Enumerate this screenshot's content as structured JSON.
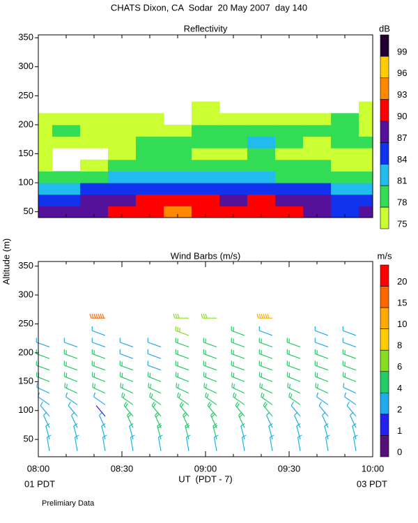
{
  "title": "CHATS Dixon, CA  Sodar  20 May 2007  day 140",
  "y_label": "Altitude (m)",
  "x_label": "UT  (PDT - 7)",
  "x_left_note": "01 PDT",
  "x_right_note": "03 PDT",
  "footnote": "Prelimiary Data",
  "chart_data": [
    {
      "type": "heatmap",
      "title": "Reflectivity",
      "colorbar_unit": "dB",
      "levels": [
        75,
        78,
        81,
        84,
        87,
        90,
        93,
        96,
        99
      ],
      "level_colors": [
        "#ccff33",
        "#33dd55",
        "#22bbee",
        "#1133ee",
        "#551199",
        "#ff0000",
        "#ff8800",
        "#ffcc00",
        "#220033"
      ],
      "xlim": [
        0,
        120
      ],
      "xtick_marks": [
        0,
        10,
        20,
        30,
        40,
        50,
        60,
        70,
        80,
        90,
        100,
        110,
        120
      ],
      "ylim": [
        40,
        355
      ],
      "yticks": [
        50,
        100,
        150,
        200,
        250,
        300,
        350
      ],
      "x": [
        0,
        10,
        20,
        30,
        40,
        50,
        60,
        70,
        80,
        90,
        100,
        110,
        120
      ],
      "heights": [
        50,
        70,
        90,
        110,
        130,
        150,
        170,
        190,
        210,
        230
      ],
      "values": [
        [
          88,
          88,
          88,
          90,
          91,
          93,
          90,
          90,
          91,
          91,
          88,
          86,
          88
        ],
        [
          86,
          86,
          87,
          89,
          90,
          91,
          90,
          89,
          90,
          89,
          87,
          85,
          85
        ],
        [
          81,
          81,
          84,
          85,
          85,
          85,
          84,
          85,
          85,
          84,
          84,
          82,
          82
        ],
        [
          78,
          78,
          79,
          81,
          82,
          82,
          81,
          81,
          82,
          80,
          79,
          78,
          78
        ],
        [
          76,
          null,
          76,
          78,
          79,
          79,
          79,
          78,
          80,
          78,
          78,
          77,
          77
        ],
        [
          76,
          null,
          null,
          76,
          78,
          78,
          77,
          77,
          78,
          76,
          76,
          76,
          76
        ],
        [
          76,
          76,
          76,
          76,
          78,
          78,
          79,
          79,
          81,
          78,
          77,
          78,
          78
        ],
        [
          76,
          78,
          76,
          76,
          76,
          77,
          78,
          79,
          79,
          78,
          79,
          79,
          77
        ],
        [
          76,
          76,
          76,
          76,
          76,
          null,
          76,
          76,
          77,
          76,
          76,
          78,
          77
        ],
        [
          null,
          null,
          null,
          null,
          null,
          null,
          76,
          null,
          null,
          null,
          null,
          null,
          76
        ]
      ]
    },
    {
      "type": "barbs",
      "title": "Wind Barbs (m/s)",
      "colorbar_unit": "m/s",
      "levels": [
        0,
        1,
        2,
        4,
        6,
        8,
        10,
        15,
        20
      ],
      "level_colors": [
        "#551177",
        "#2222ee",
        "#22aaee",
        "#22cc66",
        "#88dd22",
        "#ffcc00",
        "#ffaa00",
        "#ff6600",
        "#ff0000"
      ],
      "xlim": [
        0,
        120
      ],
      "xticks": [
        {
          "value": 0,
          "label": "08:00"
        },
        {
          "value": 30,
          "label": "08:30"
        },
        {
          "value": 60,
          "label": "09:00"
        },
        {
          "value": 90,
          "label": "09:30"
        },
        {
          "value": 120,
          "label": "10:00"
        }
      ],
      "xminor_ticks": [
        10,
        20,
        40,
        50,
        70,
        80,
        100,
        110
      ],
      "ylim": [
        20,
        358
      ],
      "yticks": [
        50,
        100,
        150,
        200,
        250,
        300,
        350
      ],
      "x": [
        4,
        14,
        24,
        34,
        44,
        54,
        64,
        74,
        84,
        94,
        104,
        114
      ],
      "heights": [
        30,
        50,
        70,
        90,
        110,
        130,
        150,
        170,
        190,
        210,
        230,
        260
      ],
      "directions": [
        350,
        345,
        335,
        320,
        305,
        295,
        292,
        290,
        290,
        290,
        290,
        270
      ],
      "speeds": [
        [
          2,
          2,
          2,
          3,
          3,
          3,
          3,
          3,
          2,
          2,
          2,
          2
        ],
        [
          2,
          2,
          3,
          3,
          4,
          4,
          4,
          3,
          3,
          2,
          2,
          2
        ],
        [
          2,
          3,
          3,
          4,
          4,
          4,
          4,
          4,
          3,
          3,
          2,
          2
        ],
        [
          3,
          3,
          1,
          4,
          4,
          4,
          4,
          4,
          4,
          3,
          3,
          2
        ],
        [
          3,
          3,
          3,
          4,
          4,
          4,
          4,
          4,
          4,
          4,
          3,
          3
        ],
        [
          3,
          4,
          4,
          4,
          4,
          4,
          4,
          5,
          4,
          4,
          4,
          3
        ],
        [
          4,
          4,
          4,
          4,
          4,
          5,
          5,
          5,
          5,
          4,
          4,
          4
        ],
        [
          4,
          4,
          4,
          4,
          3,
          5,
          5,
          5,
          5,
          5,
          4,
          4
        ],
        [
          4,
          4,
          4,
          3,
          3,
          5,
          5,
          5,
          5,
          5,
          4,
          4
        ],
        [
          3,
          3,
          3,
          3,
          3,
          4,
          5,
          5,
          5,
          4,
          3,
          3
        ],
        [
          null,
          null,
          3,
          null,
          null,
          6,
          null,
          4,
          3,
          null,
          3,
          3
        ],
        [
          null,
          null,
          15,
          null,
          null,
          6,
          7,
          null,
          12,
          null,
          null,
          null
        ]
      ]
    }
  ]
}
